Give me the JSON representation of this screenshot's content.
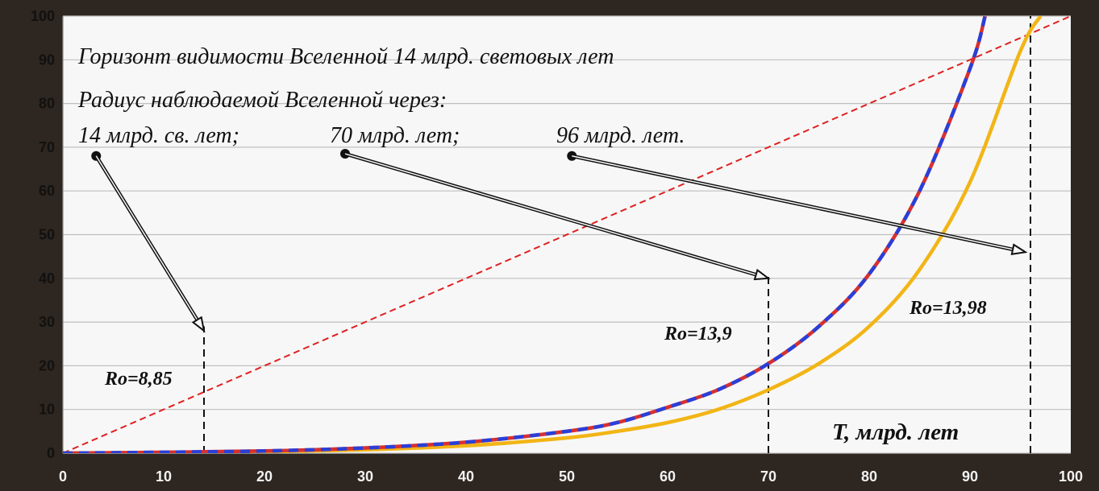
{
  "chart_data": {
    "type": "line",
    "title": "",
    "xlabel": "T, млрд. лет",
    "ylabel": "",
    "xlim": [
      0,
      100
    ],
    "ylim": [
      0,
      100
    ],
    "x_ticks": [
      "0",
      "10",
      "20",
      "30",
      "40",
      "50",
      "60",
      "70",
      "80",
      "90",
      "100"
    ],
    "y_ticks": [
      "0",
      "10",
      "20",
      "30",
      "40",
      "50",
      "60",
      "70",
      "80",
      "90",
      "100"
    ],
    "grid": true,
    "legend": "none",
    "series": [
      {
        "color": "#e02020",
        "dash": "dashed",
        "x": [
          0,
          100
        ],
        "y": [
          0,
          100
        ]
      },
      {
        "color": "#d63030",
        "overlay_color": "#2a3fd8",
        "dash": "blue-red dashed",
        "x": [
          0,
          10,
          20,
          30,
          40,
          50,
          55,
          60,
          65,
          70,
          75,
          80,
          85,
          90,
          91.5
        ],
        "y": [
          0,
          0.2,
          0.5,
          1.2,
          2.5,
          5,
          7,
          10.5,
          14.5,
          20.5,
          29,
          41,
          60,
          88,
          100
        ]
      },
      {
        "color": "#f2b516",
        "x": [
          0,
          10,
          20,
          30,
          40,
          50,
          55,
          60,
          65,
          70,
          75,
          80,
          85,
          90,
          95,
          97
        ],
        "y": [
          0,
          0.15,
          0.35,
          0.8,
          1.7,
          3.5,
          5,
          7,
          10,
          14.5,
          20.5,
          29,
          42,
          62,
          92,
          100
        ]
      }
    ],
    "annotations": {
      "horizon": "Горизонт видимости Вселенной 14 млрд. световых лет",
      "radius_intro": "Радиус наблюдаемой Вселенной через:",
      "label_14": "14 млрд. св. лет;",
      "label_70": "70 млрд. лет;",
      "label_96": "96 млрд. лет.",
      "ro_1": "Ro=8,85",
      "ro_2": "Ro=13,9",
      "ro_3": "Ro=13,98"
    },
    "markers": [
      {
        "x": 14,
        "y_top": 29
      },
      {
        "x": 70,
        "y_top": 41
      },
      {
        "x": 96,
        "y_top": 100
      }
    ],
    "arrows": [
      {
        "from": [
          3.3,
          68
        ],
        "to": [
          14,
          28
        ]
      },
      {
        "from": [
          28,
          68.5
        ],
        "to": [
          70,
          40
        ]
      },
      {
        "from": [
          50.5,
          68
        ],
        "to": [
          95.5,
          46
        ]
      }
    ]
  },
  "colors": {
    "plot_background": "#f7f7f7",
    "gridline": "#bfbfbf",
    "arrow": "#111111"
  }
}
